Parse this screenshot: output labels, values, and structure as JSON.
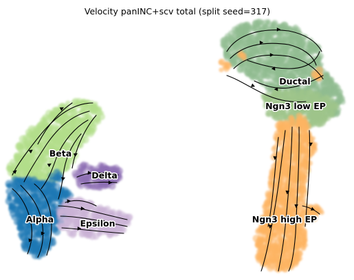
{
  "chart_data": {
    "type": "scatter",
    "title": "Velocity panINC+scv total (split seed=317)",
    "xlabel": "",
    "ylabel": "",
    "grid": false,
    "axes_visible": false,
    "clusters": [
      {
        "name": "Beta",
        "color": "#b2df8a"
      },
      {
        "name": "Delta",
        "color": "#8e6fb5"
      },
      {
        "name": "Alpha",
        "color": "#1f78b4"
      },
      {
        "name": "Epsilon",
        "color": "#cab2d6"
      },
      {
        "name": "Ductal",
        "color": "#8fbc8f"
      },
      {
        "name": "Ngn3 low EP",
        "color": "#9fc58a"
      },
      {
        "name": "Ngn3 high EP",
        "color": "#fdb462"
      }
    ],
    "overlay": "velocity streamlines"
  }
}
